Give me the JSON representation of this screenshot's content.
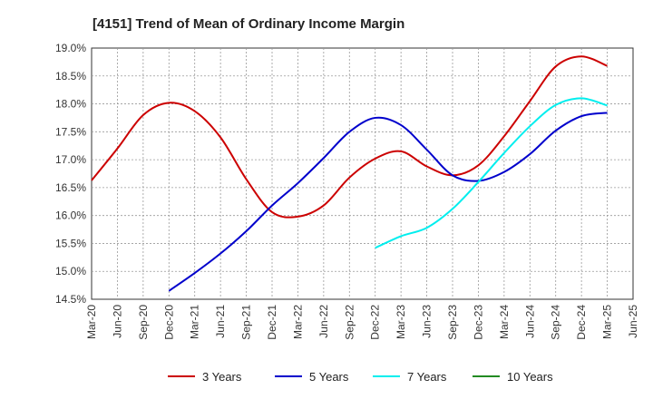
{
  "chart_data": {
    "type": "line",
    "title": "[4151]  Trend of Mean of Ordinary Income Margin",
    "xlabel": "",
    "ylabel": "",
    "ylim": [
      14.5,
      19.0
    ],
    "y_ticks": [
      "19.0%",
      "18.5%",
      "18.0%",
      "17.5%",
      "17.0%",
      "16.5%",
      "16.0%",
      "15.5%",
      "15.0%",
      "14.5%"
    ],
    "x_ticks": [
      "Mar-20",
      "Jun-20",
      "Sep-20",
      "Dec-20",
      "Mar-21",
      "Jun-21",
      "Sep-21",
      "Dec-21",
      "Mar-22",
      "Jun-22",
      "Sep-22",
      "Dec-22",
      "Mar-23",
      "Jun-23",
      "Sep-23",
      "Dec-23",
      "Mar-24",
      "Jun-24",
      "Sep-24",
      "Dec-24",
      "Mar-25",
      "Jun-25"
    ],
    "grid": true,
    "legend_position": "bottom",
    "series": [
      {
        "name": "3 Years",
        "color": "#cc0000",
        "points": [
          [
            "Mar-20",
            16.63
          ],
          [
            "Jun-20",
            17.2
          ],
          [
            "Sep-20",
            17.8
          ],
          [
            "Dec-20",
            18.02
          ],
          [
            "Mar-21",
            17.87
          ],
          [
            "Jun-21",
            17.4
          ],
          [
            "Sep-21",
            16.65
          ],
          [
            "Dec-21",
            16.06
          ],
          [
            "Mar-22",
            15.98
          ],
          [
            "Jun-22",
            16.18
          ],
          [
            "Sep-22",
            16.68
          ],
          [
            "Dec-22",
            17.02
          ],
          [
            "Mar-23",
            17.15
          ],
          [
            "Jun-23",
            16.88
          ],
          [
            "Sep-23",
            16.72
          ],
          [
            "Dec-23",
            16.9
          ],
          [
            "Mar-24",
            17.42
          ],
          [
            "Jun-24",
            18.05
          ],
          [
            "Sep-24",
            18.67
          ],
          [
            "Dec-24",
            18.85
          ],
          [
            "Mar-25",
            18.68
          ]
        ]
      },
      {
        "name": "5 Years",
        "color": "#0000cc",
        "points": [
          [
            "Dec-20",
            14.65
          ],
          [
            "Mar-21",
            14.97
          ],
          [
            "Jun-21",
            15.32
          ],
          [
            "Sep-21",
            15.72
          ],
          [
            "Dec-21",
            16.18
          ],
          [
            "Mar-22",
            16.58
          ],
          [
            "Jun-22",
            17.03
          ],
          [
            "Sep-22",
            17.5
          ],
          [
            "Dec-22",
            17.75
          ],
          [
            "Mar-23",
            17.62
          ],
          [
            "Jun-23",
            17.18
          ],
          [
            "Sep-23",
            16.72
          ],
          [
            "Dec-23",
            16.62
          ],
          [
            "Mar-24",
            16.78
          ],
          [
            "Jun-24",
            17.1
          ],
          [
            "Sep-24",
            17.52
          ],
          [
            "Dec-24",
            17.78
          ],
          [
            "Mar-25",
            17.84
          ]
        ]
      },
      {
        "name": "7 Years",
        "color": "#00eeee",
        "points": [
          [
            "Dec-22",
            15.42
          ],
          [
            "Mar-23",
            15.63
          ],
          [
            "Jun-23",
            15.78
          ],
          [
            "Sep-23",
            16.12
          ],
          [
            "Dec-23",
            16.6
          ],
          [
            "Mar-24",
            17.12
          ],
          [
            "Jun-24",
            17.6
          ],
          [
            "Sep-24",
            17.98
          ],
          [
            "Dec-24",
            18.1
          ],
          [
            "Mar-25",
            17.97
          ]
        ]
      },
      {
        "name": "10 Years",
        "color": "#228b22",
        "points": []
      }
    ]
  }
}
